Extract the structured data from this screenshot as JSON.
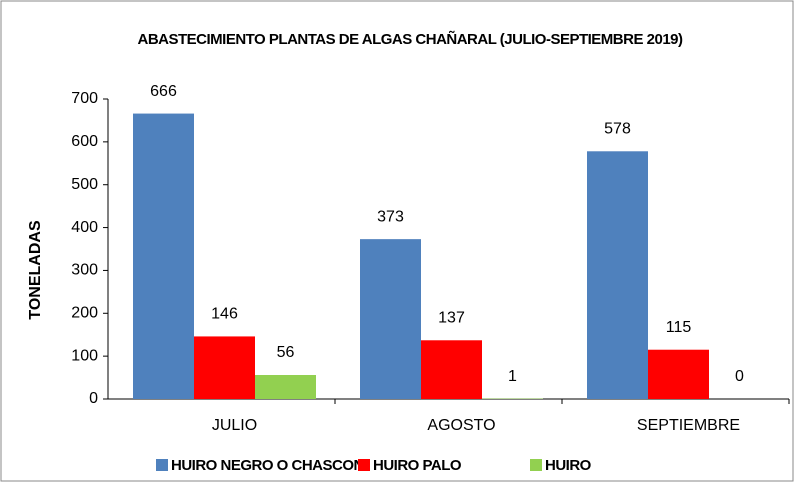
{
  "chart_data": {
    "type": "bar",
    "title": "ABASTECIMIENTO PLANTAS DE ALGAS CHAÑARAL (JULIO-SEPTIEMBRE 2019)",
    "y_label": "TONELADAS",
    "categories": [
      "JULIO",
      "AGOSTO",
      "SEPTIEMBRE"
    ],
    "series": [
      {
        "name": "HUIRO NEGRO O CHASCON",
        "color": "#4f81bd",
        "values": [
          666,
          373,
          578
        ]
      },
      {
        "name": "HUIRO PALO",
        "color": "#ff0000",
        "values": [
          146,
          137,
          115
        ]
      },
      {
        "name": "HUIRO",
        "color": "#92d050",
        "values": [
          56,
          1,
          0
        ]
      }
    ],
    "ylim": [
      0,
      700
    ],
    "yticks": [
      0,
      100,
      200,
      300,
      400,
      500,
      600,
      700
    ],
    "grid": false,
    "legend": "bottom"
  }
}
